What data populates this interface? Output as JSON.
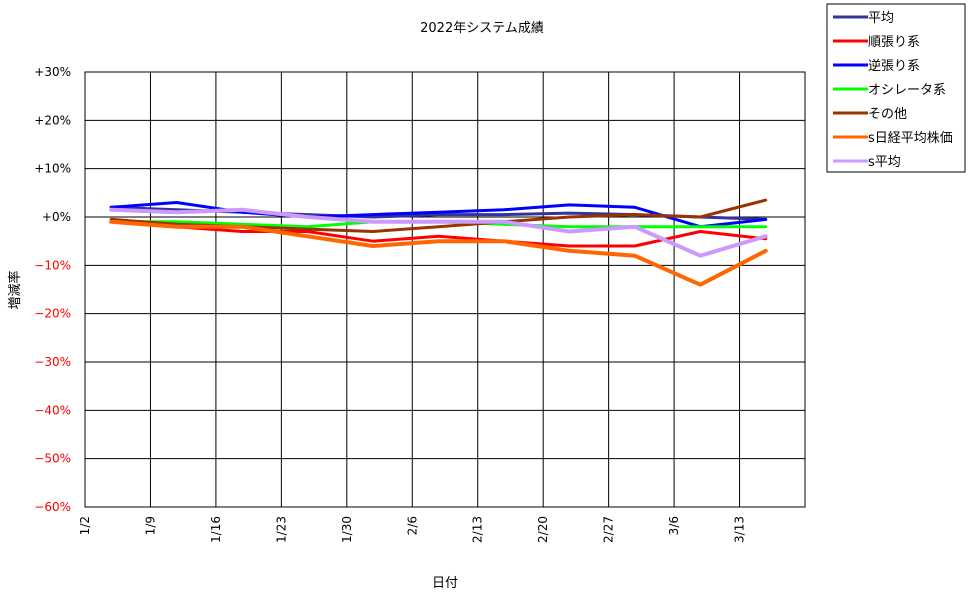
{
  "chart_data": {
    "type": "line",
    "title": "2022年システム成績",
    "xlabel": "日付",
    "ylabel": "増減率",
    "ylim": [
      -60,
      30
    ],
    "yticks": [
      {
        "value": 30,
        "label": "+30%"
      },
      {
        "value": 20,
        "label": "+20%"
      },
      {
        "value": 10,
        "label": "+10%"
      },
      {
        "value": 0,
        "label": "+0%"
      },
      {
        "value": -10,
        "label": "−10%"
      },
      {
        "value": -20,
        "label": "−20%"
      },
      {
        "value": -30,
        "label": "−30%"
      },
      {
        "value": -40,
        "label": "−40%"
      },
      {
        "value": -50,
        "label": "−50%"
      },
      {
        "value": -60,
        "label": "−60%"
      }
    ],
    "xticks": [
      "1/2",
      "1/9",
      "1/16",
      "1/23",
      "1/30",
      "2/6",
      "2/13",
      "2/20",
      "2/27",
      "3/6",
      "3/13"
    ],
    "grid": true,
    "legend_position": "top-right",
    "x": [
      0.4,
      1.4,
      2.4,
      3.4,
      4.4,
      5.4,
      6.4,
      7.4,
      8.4,
      9.4,
      10.4
    ],
    "series": [
      {
        "name": "平均",
        "color": "#333399",
        "width": 3,
        "values": [
          2.0,
          1.5,
          1.0,
          0.5,
          0.0,
          0.5,
          0.5,
          0.8,
          0.5,
          0.0,
          -0.5
        ]
      },
      {
        "name": "順張り系",
        "color": "#ff0000",
        "width": 3,
        "values": [
          -1.0,
          -2.0,
          -3.0,
          -3.0,
          -5.0,
          -4.0,
          -5.0,
          -6.0,
          -6.0,
          -3.0,
          -4.5
        ]
      },
      {
        "name": "逆張り系",
        "color": "#0000ff",
        "width": 3,
        "values": [
          2.0,
          3.0,
          1.0,
          0.0,
          0.5,
          1.0,
          1.5,
          2.5,
          2.0,
          -2.0,
          -0.5
        ]
      },
      {
        "name": "オシレータ系",
        "color": "#00ff00",
        "width": 3,
        "values": [
          -1.0,
          -1.0,
          -1.5,
          -2.0,
          -1.0,
          -1.0,
          -1.5,
          -2.0,
          -2.0,
          -2.0,
          -2.0
        ]
      },
      {
        "name": "その他",
        "color": "#993300",
        "width": 3,
        "values": [
          -0.5,
          -1.5,
          -2.0,
          -2.5,
          -3.0,
          -2.0,
          -1.0,
          0.0,
          0.5,
          0.0,
          3.5
        ]
      },
      {
        "name": "s日経平均株価",
        "color": "#ff6600",
        "width": 4,
        "values": [
          -1.0,
          -2.0,
          -2.0,
          -4.0,
          -6.0,
          -5.0,
          -5.0,
          -7.0,
          -8.0,
          -14.0,
          -7.0
        ]
      },
      {
        "name": "s平均",
        "color": "#cc99ff",
        "width": 4,
        "values": [
          1.5,
          1.0,
          1.5,
          0.0,
          -1.0,
          -1.0,
          -1.0,
          -3.0,
          -2.0,
          -8.0,
          -4.0
        ]
      }
    ]
  }
}
